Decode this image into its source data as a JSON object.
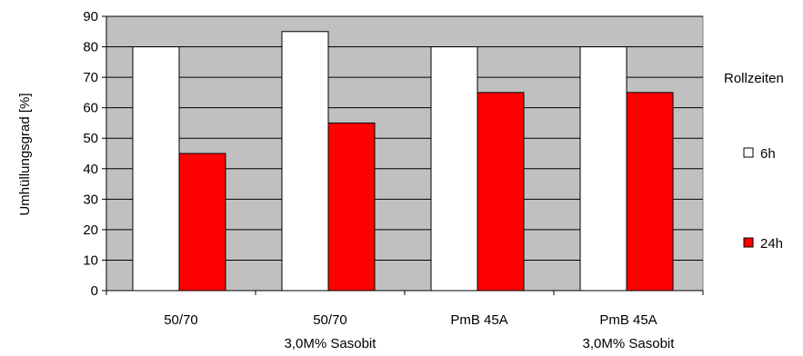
{
  "chart_data": {
    "type": "bar",
    "categories": [
      [
        "50/70"
      ],
      [
        "50/70",
        "3,0M% Sasobit"
      ],
      [
        "PmB 45A"
      ],
      [
        "PmB 45A",
        "3,0M% Sasobit"
      ]
    ],
    "series": [
      {
        "name": "6h",
        "values": [
          80,
          85,
          80,
          80
        ],
        "color": "#ffffff"
      },
      {
        "name": "24h",
        "values": [
          45,
          55,
          65,
          65
        ],
        "color": "#ff0000"
      }
    ],
    "ylabel": "Umhüllungsgrad [%]",
    "ylim": [
      0,
      90
    ],
    "yticks": [
      "0",
      "10",
      "20",
      "30",
      "40",
      "50",
      "60",
      "70",
      "80",
      "90"
    ],
    "grid": true,
    "plot_background": "#c0c0c0",
    "legend_title": "Rollzeiten",
    "legend_position": "right"
  }
}
